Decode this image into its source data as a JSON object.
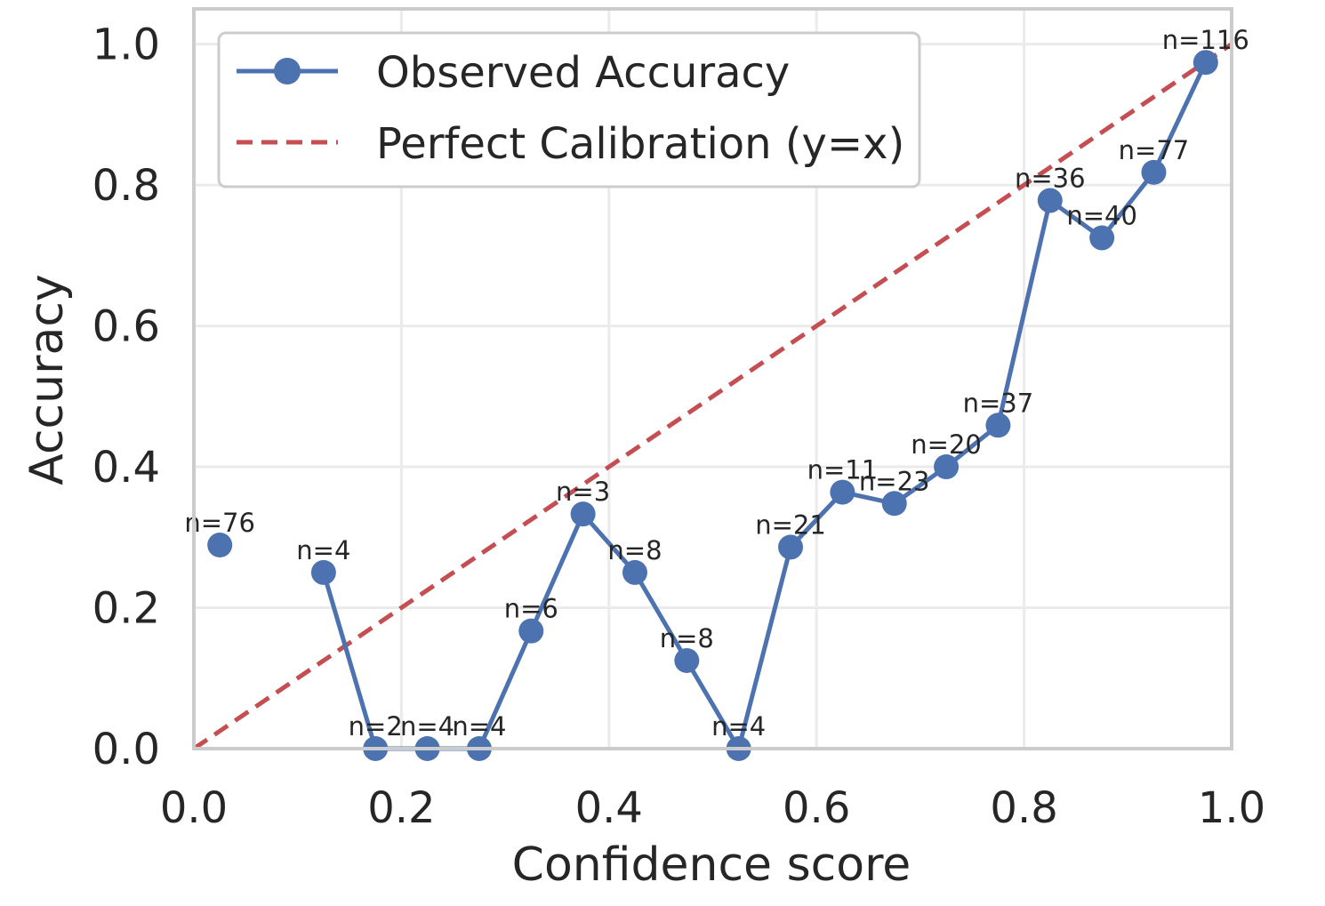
{
  "chart_data": {
    "type": "line",
    "title": "",
    "xlabel": "Confidence score",
    "ylabel": "Accuracy",
    "xlim": [
      0.0,
      1.0
    ],
    "ylim": [
      0.0,
      1.05
    ],
    "xticks": [
      0.0,
      0.2,
      0.4,
      0.6,
      0.8,
      1.0
    ],
    "yticks": [
      0.0,
      0.2,
      0.4,
      0.6,
      0.8,
      1.0
    ],
    "xtick_labels": [
      "0.0",
      "0.2",
      "0.4",
      "0.6",
      "0.8",
      "1.0"
    ],
    "ytick_labels": [
      "0.0",
      "0.2",
      "0.4",
      "0.6",
      "0.8",
      "1.0"
    ],
    "grid": true,
    "legend_position": "top-left",
    "series": [
      {
        "name": "Observed Accuracy",
        "color": "#4c72b0",
        "style": "line-with-markers",
        "x": [
          0.025,
          0.125,
          0.175,
          0.225,
          0.275,
          0.325,
          0.375,
          0.425,
          0.475,
          0.525,
          0.575,
          0.625,
          0.675,
          0.725,
          0.775,
          0.825,
          0.875,
          0.925,
          0.975
        ],
        "y": [
          0.289,
          0.25,
          0.0,
          0.0,
          0.0,
          0.167,
          0.333,
          0.25,
          0.125,
          0.0,
          0.286,
          0.364,
          0.348,
          0.4,
          0.459,
          0.778,
          0.725,
          0.818,
          0.974
        ],
        "counts": [
          "n=76",
          "n=4",
          "n=2",
          "n=4",
          "n=4",
          "n=6",
          "n=3",
          "n=8",
          "n=8",
          "n=4",
          "n=21",
          "n=11",
          "n=23",
          "n=20",
          "n=37",
          "n=36",
          "n=40",
          "n=77",
          "n=116"
        ],
        "gap_after_index": 0
      },
      {
        "name": "Perfect Calibration (y=x)",
        "color": "#c44e52",
        "style": "dashed",
        "x": [
          0.0,
          1.0
        ],
        "y": [
          0.0,
          1.0
        ]
      }
    ]
  },
  "colors": {
    "observed": "#4c72b0",
    "perfect": "#c44e52",
    "grid": "#ebebeb",
    "spine": "#cccccc",
    "text": "#262626"
  }
}
